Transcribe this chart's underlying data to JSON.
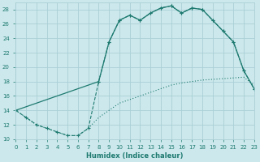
{
  "xlabel": "Humidex (Indice chaleur)",
  "bg_color": "#cce8ec",
  "grid_color": "#aad0d6",
  "line_color": "#1e7a70",
  "xlim": [
    0,
    23
  ],
  "ylim": [
    10,
    29
  ],
  "xticks": [
    0,
    1,
    2,
    3,
    4,
    5,
    6,
    7,
    8,
    9,
    10,
    11,
    12,
    13,
    14,
    15,
    16,
    17,
    18,
    19,
    20,
    21,
    22,
    23
  ],
  "yticks": [
    10,
    12,
    14,
    16,
    18,
    20,
    22,
    24,
    26,
    28
  ],
  "curve_dotted_x": [
    0,
    1,
    2,
    3,
    4,
    5,
    6,
    7,
    8,
    9,
    10,
    11,
    12,
    13,
    14,
    15,
    16,
    17,
    18,
    19,
    20,
    21,
    22,
    23
  ],
  "curve_dotted_y": [
    14,
    13,
    12,
    11.5,
    11,
    10.5,
    10.5,
    11.5,
    13,
    14,
    15,
    15.5,
    16,
    16.5,
    17,
    17.5,
    17.8,
    18,
    18.2,
    18.3,
    18.4,
    18.5,
    18.6,
    17.5
  ],
  "curve_dashed_x": [
    0,
    1,
    2,
    3,
    4,
    5,
    6,
    7,
    8,
    9,
    10,
    11,
    12,
    13,
    14,
    15,
    16,
    17,
    18,
    19,
    20,
    21,
    22,
    23
  ],
  "curve_dashed_y": [
    14,
    13,
    12,
    11.5,
    11,
    10.5,
    10.5,
    11.5,
    18,
    23.5,
    26.5,
    27.2,
    26.5,
    27.5,
    28.2,
    28.5,
    27.5,
    28.2,
    28,
    26.5,
    25,
    23.5,
    19.5,
    17
  ],
  "curve_solid_x": [
    0,
    8,
    9,
    10,
    11,
    12,
    13,
    14,
    15,
    16,
    17,
    18,
    19,
    20,
    21,
    22,
    23
  ],
  "curve_solid_y": [
    14,
    18,
    23.5,
    26.5,
    27.2,
    26.5,
    27.5,
    28.2,
    28.5,
    27.5,
    28.2,
    28,
    26.5,
    25,
    23.5,
    19.5,
    17
  ]
}
